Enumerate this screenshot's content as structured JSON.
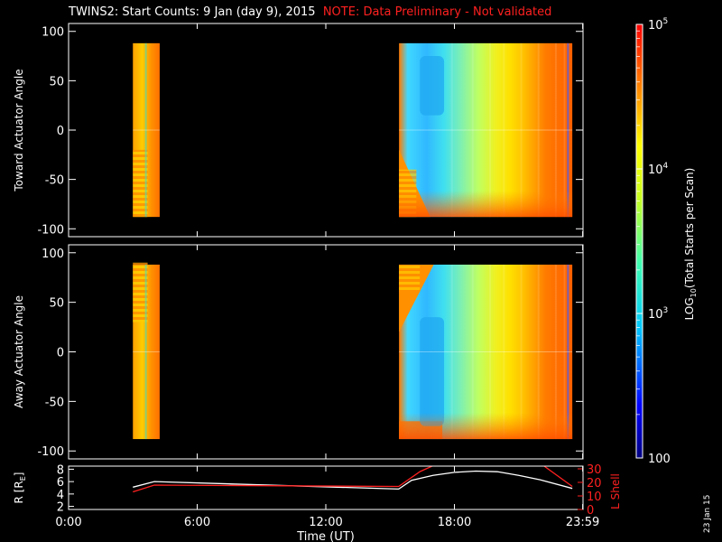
{
  "header": {
    "title": "TWINS2: Start Counts:  9 Jan (day   9), 2015",
    "note": "NOTE: Data Preliminary - Not validated"
  },
  "footer": {
    "date_stamp": "23 Jan 15"
  },
  "colors": {
    "background": "#000000",
    "note_red": "#ff2020",
    "lshell_red": "#ff2020"
  },
  "chart_data": [
    {
      "type": "heatmap",
      "name": "toward-panel",
      "ylabel": "Toward Actuator Angle",
      "ylim": [
        -108,
        108
      ],
      "yticks": [
        100,
        50,
        0,
        -50,
        -100
      ],
      "xlim_hours": [
        0,
        24
      ],
      "data_blocks": [
        {
          "x": [
            "3:00",
            "4:15"
          ],
          "y": [
            -88,
            88
          ]
        },
        {
          "x": [
            "15:25",
            "23:30"
          ],
          "y": [
            -88,
            88
          ]
        }
      ]
    },
    {
      "type": "heatmap",
      "name": "away-panel",
      "ylabel": "Away Actuator Angle",
      "ylim": [
        -108,
        108
      ],
      "yticks": [
        100,
        50,
        0,
        -50,
        -100
      ],
      "xlim_hours": [
        0,
        24
      ],
      "data_blocks": [
        {
          "x": [
            "3:00",
            "4:15"
          ],
          "y": [
            -88,
            88
          ]
        },
        {
          "x": [
            "15:25",
            "23:30"
          ],
          "y": [
            -88,
            88
          ]
        }
      ]
    },
    {
      "type": "line",
      "name": "orbit-panel",
      "ylabel_left": "R [R",
      "ylabel_left_sub": "E",
      "ylabel_left_end": "]",
      "ylabel_right": "L Shell",
      "xlabel": "Time (UT)",
      "xticks": [
        "0:00",
        "6:00",
        "12:00",
        "18:00",
        "23:59"
      ],
      "xtick_hours": [
        0,
        6,
        12,
        18,
        23.983
      ],
      "left_yticks": [
        8,
        6,
        4,
        2
      ],
      "left_ylim": [
        1.5,
        8.5
      ],
      "right_yticks": [
        30,
        20,
        10,
        0
      ],
      "right_ylim": [
        0,
        32
      ],
      "series": [
        {
          "name": "R",
          "color": "#ffffff",
          "axis": "left",
          "x": [
            3,
            4,
            15.4,
            16,
            17,
            18,
            19,
            20,
            21,
            22,
            23.5
          ],
          "y": [
            5.1,
            6.0,
            4.8,
            6.2,
            7.0,
            7.5,
            7.7,
            7.6,
            7.0,
            6.3,
            4.9
          ]
        },
        {
          "name": "L Shell",
          "color": "#ff2020",
          "axis": "right",
          "x": [
            3,
            4,
            15.4,
            16.4,
            17.1
          ],
          "y": [
            13,
            18,
            17,
            28,
            33
          ]
        },
        {
          "name": "L Shell end",
          "color": "#ff2020",
          "axis": "right",
          "x": [
            22.1,
            23.5
          ],
          "y": [
            33,
            17
          ]
        }
      ]
    }
  ],
  "colorbar": {
    "label_pre": "LOG",
    "label_sub": "10",
    "label_post": "(Total Starts per Scan)",
    "ticks": [
      {
        "base": "10",
        "exp": "5",
        "value": 100000
      },
      {
        "base": "10",
        "exp": "4",
        "value": 10000
      },
      {
        "base": "10",
        "exp": "3",
        "value": 1000
      },
      {
        "base": "100",
        "exp": "",
        "value": 100
      }
    ],
    "range_log": [
      2,
      5
    ]
  }
}
